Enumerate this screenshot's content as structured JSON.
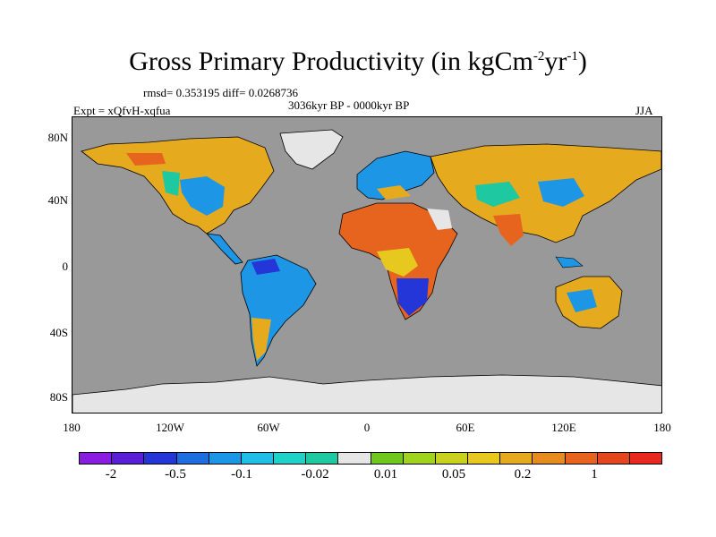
{
  "title": {
    "text": "Gross Primary Productivity (in kgCm",
    "sup1": "-2",
    "mid": "yr",
    "sup2": "-1",
    "end": ")"
  },
  "stats": "rmsd= 0.353195 diff= 0.0268736",
  "period": "3036kyr BP - 0000kyr BP",
  "experiment": "Expt = xQfvH-xqfua",
  "season": "JJA",
  "y_axis_labels": [
    "80N",
    "40N",
    "0",
    "40S",
    "80S"
  ],
  "x_axis_labels": [
    "180",
    "120W",
    "60W",
    "0",
    "60E",
    "120E",
    "180"
  ],
  "colorbar": {
    "colors": [
      "#8A1EE0",
      "#5A1ED8",
      "#2436D8",
      "#1E6EE0",
      "#1E96E6",
      "#1EBEE6",
      "#1ED2C8",
      "#1EC8A0",
      "#E6E6E6",
      "#6EC81E",
      "#A0D21E",
      "#C8D21E",
      "#E6C81E",
      "#E6AA1E",
      "#E68C1E",
      "#E6641E",
      "#E6461E",
      "#E6281E"
    ],
    "labels": [
      "-2",
      "-0.5",
      "-0.1",
      "-0.02",
      "0.01",
      "0.05",
      "0.2",
      "1"
    ]
  },
  "legend_colors": {
    "ocean": "#999999",
    "ice": "#E6E6E6"
  }
}
